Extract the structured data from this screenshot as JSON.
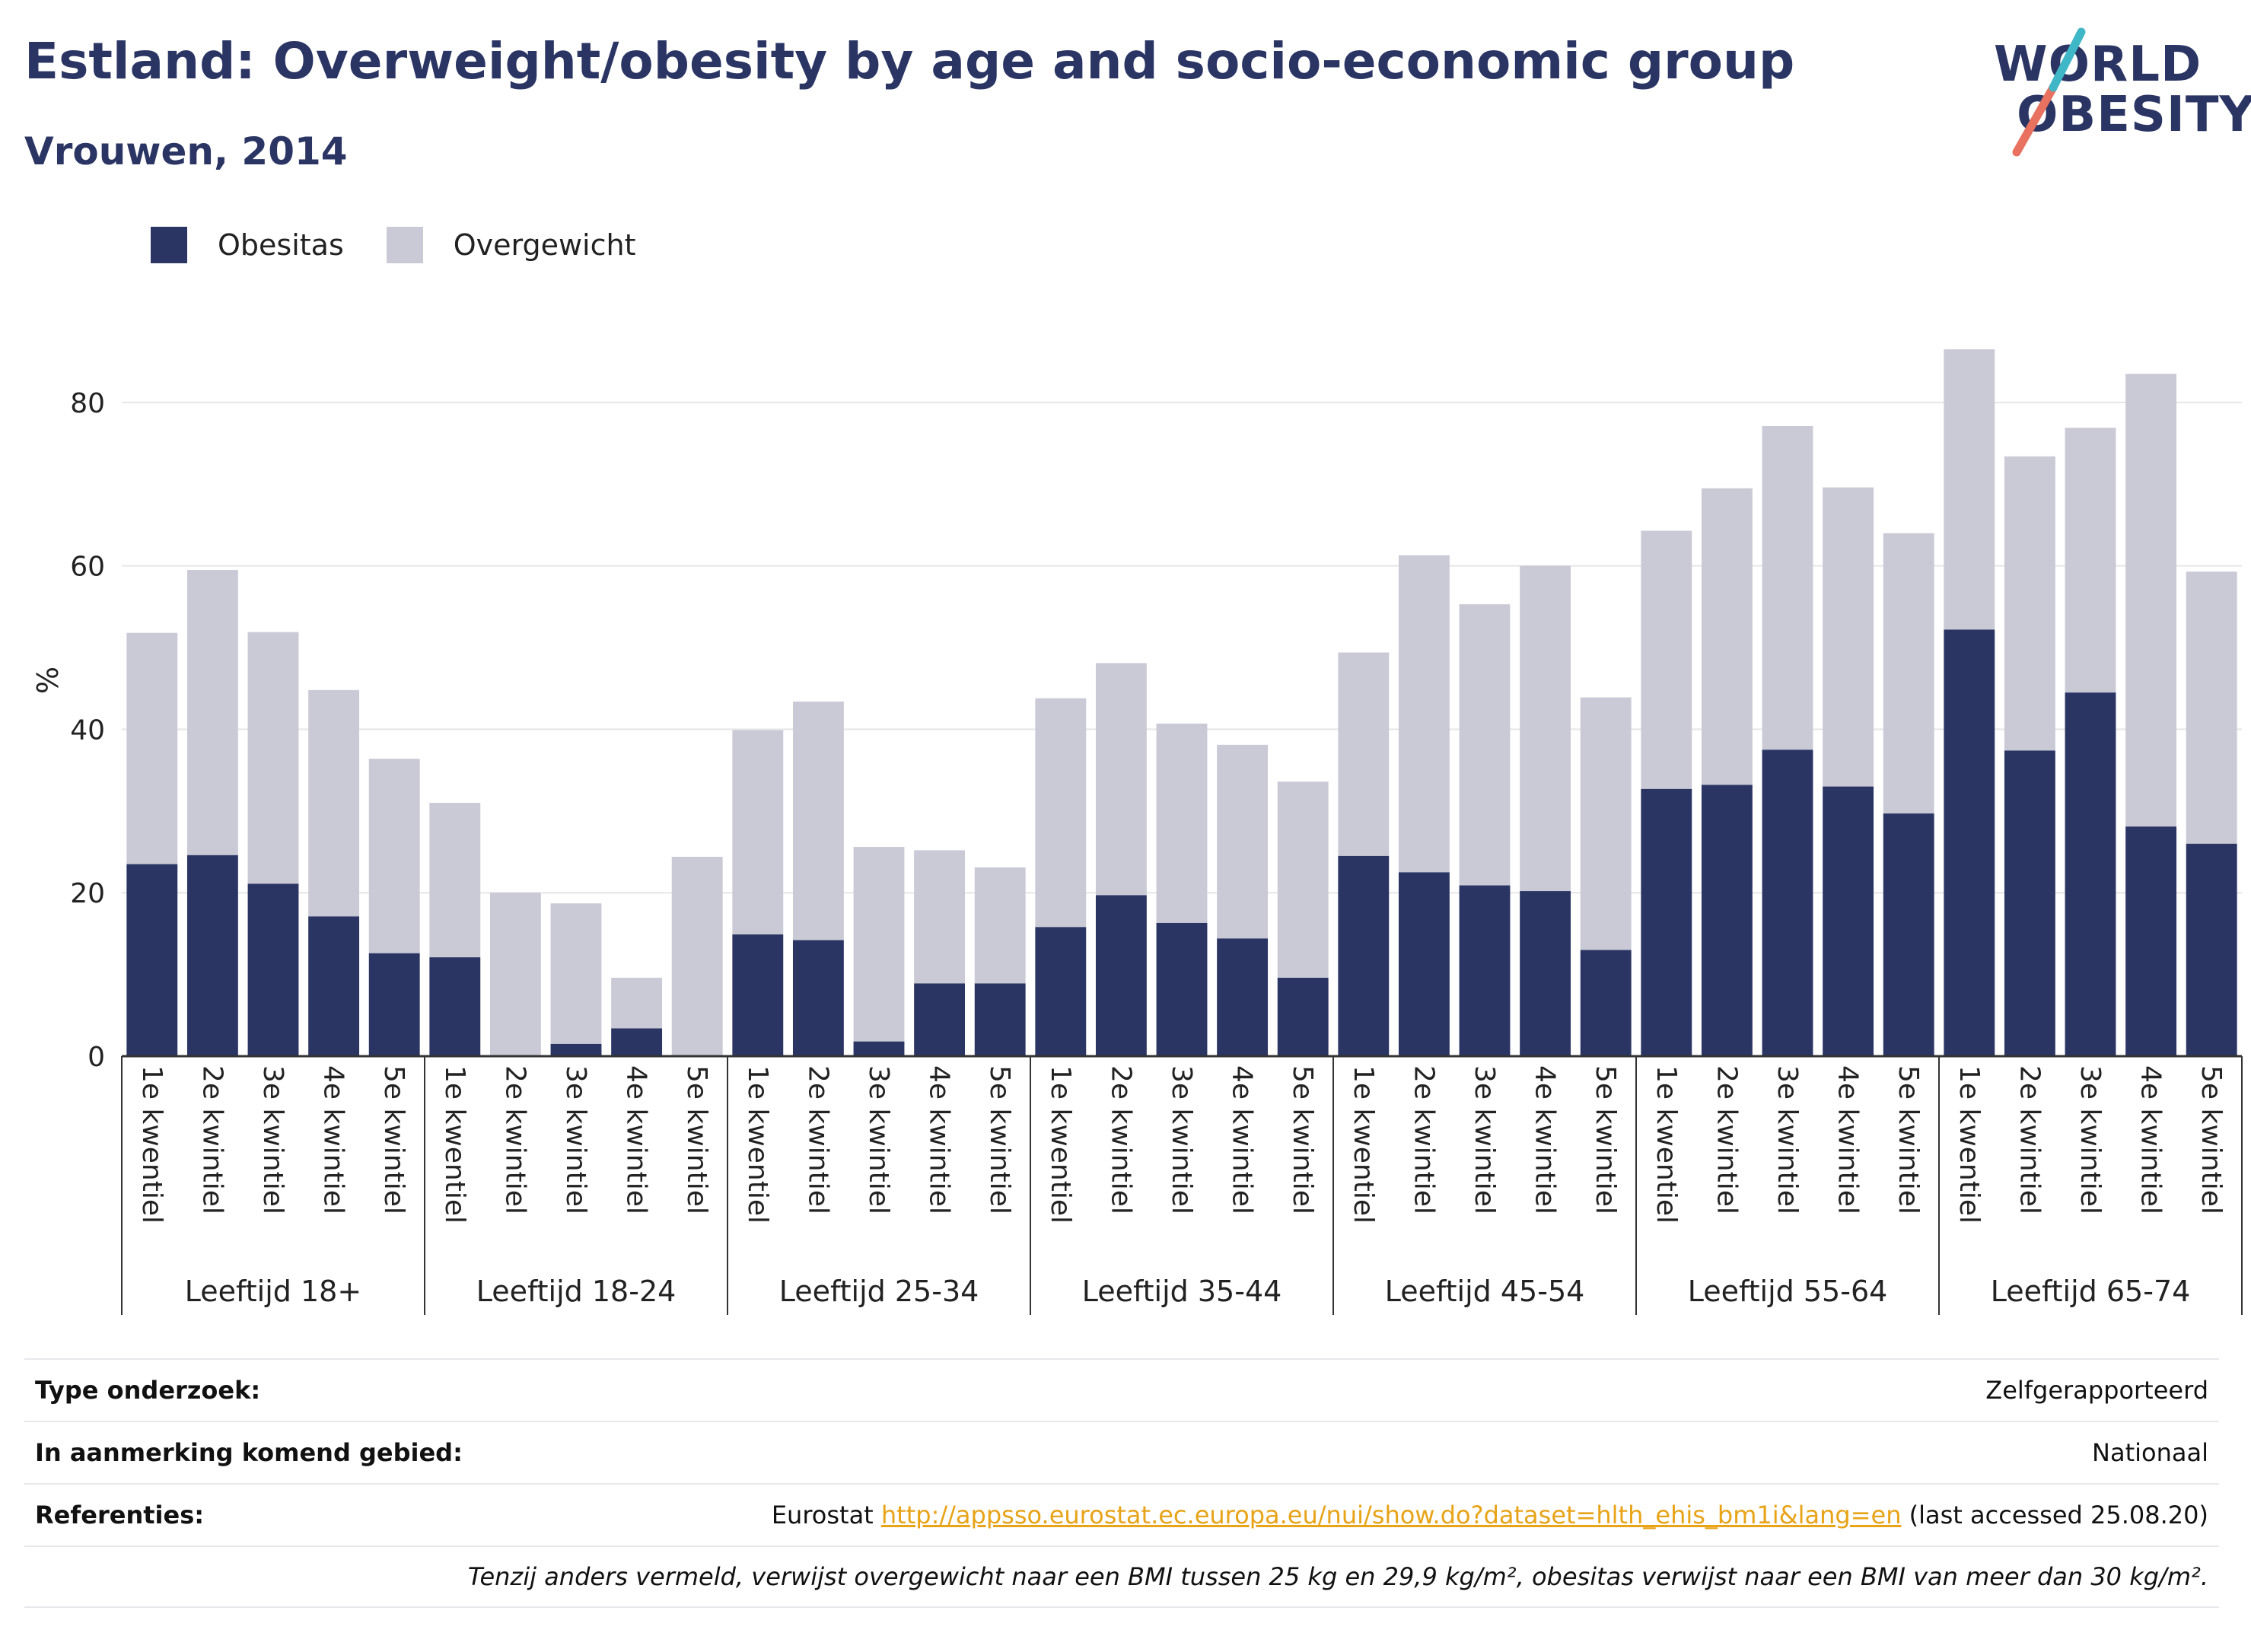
{
  "header": {
    "title": "Estland: Overweight/obesity by age and socio-economic group",
    "subtitle": "Vrouwen, 2014"
  },
  "logo": {
    "line1": "WORLD",
    "line2": "OBESITY",
    "slash_colors": [
      "#e8715f",
      "#3fb7c7"
    ]
  },
  "colors": {
    "obesitas": "#2b3564",
    "overgewicht": "#c9cad6",
    "grid": "#e6e6e6",
    "axis": "#333333",
    "link": "#e8a317"
  },
  "legend": {
    "items": [
      {
        "label": "Obesitas"
      },
      {
        "label": "Overgewicht"
      }
    ]
  },
  "chart_data": {
    "type": "bar",
    "stacked": true,
    "ylabel": "%",
    "ylim": [
      0,
      92
    ],
    "yticks": [
      0,
      20,
      40,
      60,
      80
    ],
    "grid": true,
    "legend_position": "top-left",
    "groups": [
      {
        "label": "Leeftijd 18+",
        "categories": [
          "1e kwentiel",
          "2e kwintiel",
          "3e kwintiel",
          "4e kwintiel",
          "5e kwintiel"
        ],
        "obesitas": [
          23.5,
          24.6,
          21.1,
          17.1,
          12.6
        ],
        "totaal": [
          51.8,
          59.5,
          51.9,
          44.8,
          36.4
        ]
      },
      {
        "label": "Leeftijd 18-24",
        "categories": [
          "1e kwentiel",
          "2e kwintiel",
          "3e kwintiel",
          "4e kwintiel",
          "5e kwintiel"
        ],
        "obesitas": [
          12.1,
          0,
          1.5,
          3.4,
          0
        ],
        "totaal": [
          31.0,
          20.0,
          18.7,
          9.6,
          24.4
        ]
      },
      {
        "label": "Leeftijd 25-34",
        "categories": [
          "1e kwentiel",
          "2e kwintiel",
          "3e kwintiel",
          "4e kwintiel",
          "5e kwintiel"
        ],
        "obesitas": [
          14.9,
          14.2,
          1.8,
          8.9,
          8.9
        ],
        "totaal": [
          39.9,
          43.4,
          25.6,
          25.2,
          23.1
        ]
      },
      {
        "label": "Leeftijd 35-44",
        "categories": [
          "1e kwentiel",
          "2e kwintiel",
          "3e kwintiel",
          "4e kwintiel",
          "5e kwintiel"
        ],
        "obesitas": [
          15.8,
          19.7,
          16.3,
          14.4,
          9.6
        ],
        "totaal": [
          43.8,
          48.1,
          40.7,
          38.1,
          33.6
        ]
      },
      {
        "label": "Leeftijd 45-54",
        "categories": [
          "1e kwentiel",
          "2e kwintiel",
          "3e kwintiel",
          "4e kwintiel",
          "5e kwintiel"
        ],
        "obesitas": [
          24.5,
          22.5,
          20.9,
          20.2,
          13.0
        ],
        "totaal": [
          49.4,
          61.3,
          55.3,
          60.0,
          43.9
        ]
      },
      {
        "label": "Leeftijd 55-64",
        "categories": [
          "1e kwentiel",
          "2e kwintiel",
          "3e kwintiel",
          "4e kwintiel",
          "5e kwintiel"
        ],
        "obesitas": [
          32.7,
          33.2,
          37.5,
          33.0,
          29.7
        ],
        "totaal": [
          64.3,
          69.5,
          77.1,
          69.6,
          64.0
        ]
      },
      {
        "label": "Leeftijd 65-74",
        "categories": [
          "1e kwentiel",
          "2e kwintiel",
          "3e kwintiel",
          "4e kwintiel",
          "5e kwintiel"
        ],
        "obesitas": [
          52.2,
          37.4,
          44.5,
          28.1,
          26.0
        ],
        "totaal": [
          86.5,
          73.4,
          76.9,
          83.5,
          59.3
        ]
      }
    ]
  },
  "info": {
    "rows": [
      {
        "label": "Type onderzoek:",
        "value": "Zelfgerapporteerd"
      },
      {
        "label": "In aanmerking komend gebied:",
        "value": "Nationaal"
      },
      {
        "label": "Referenties:",
        "prefix": "Eurostat ",
        "link": "http://appsso.eurostat.ec.europa.eu/nui/show.do?dataset=hlth_ehis_bm1i&lang=en",
        "suffix": " (last accessed 25.08.20)"
      }
    ],
    "note": "Tenzij anders vermeld, verwijst overgewicht naar een BMI tussen 25 kg en 29,9 kg/m², obesitas verwijst naar een BMI van meer dan 30 kg/m²."
  }
}
